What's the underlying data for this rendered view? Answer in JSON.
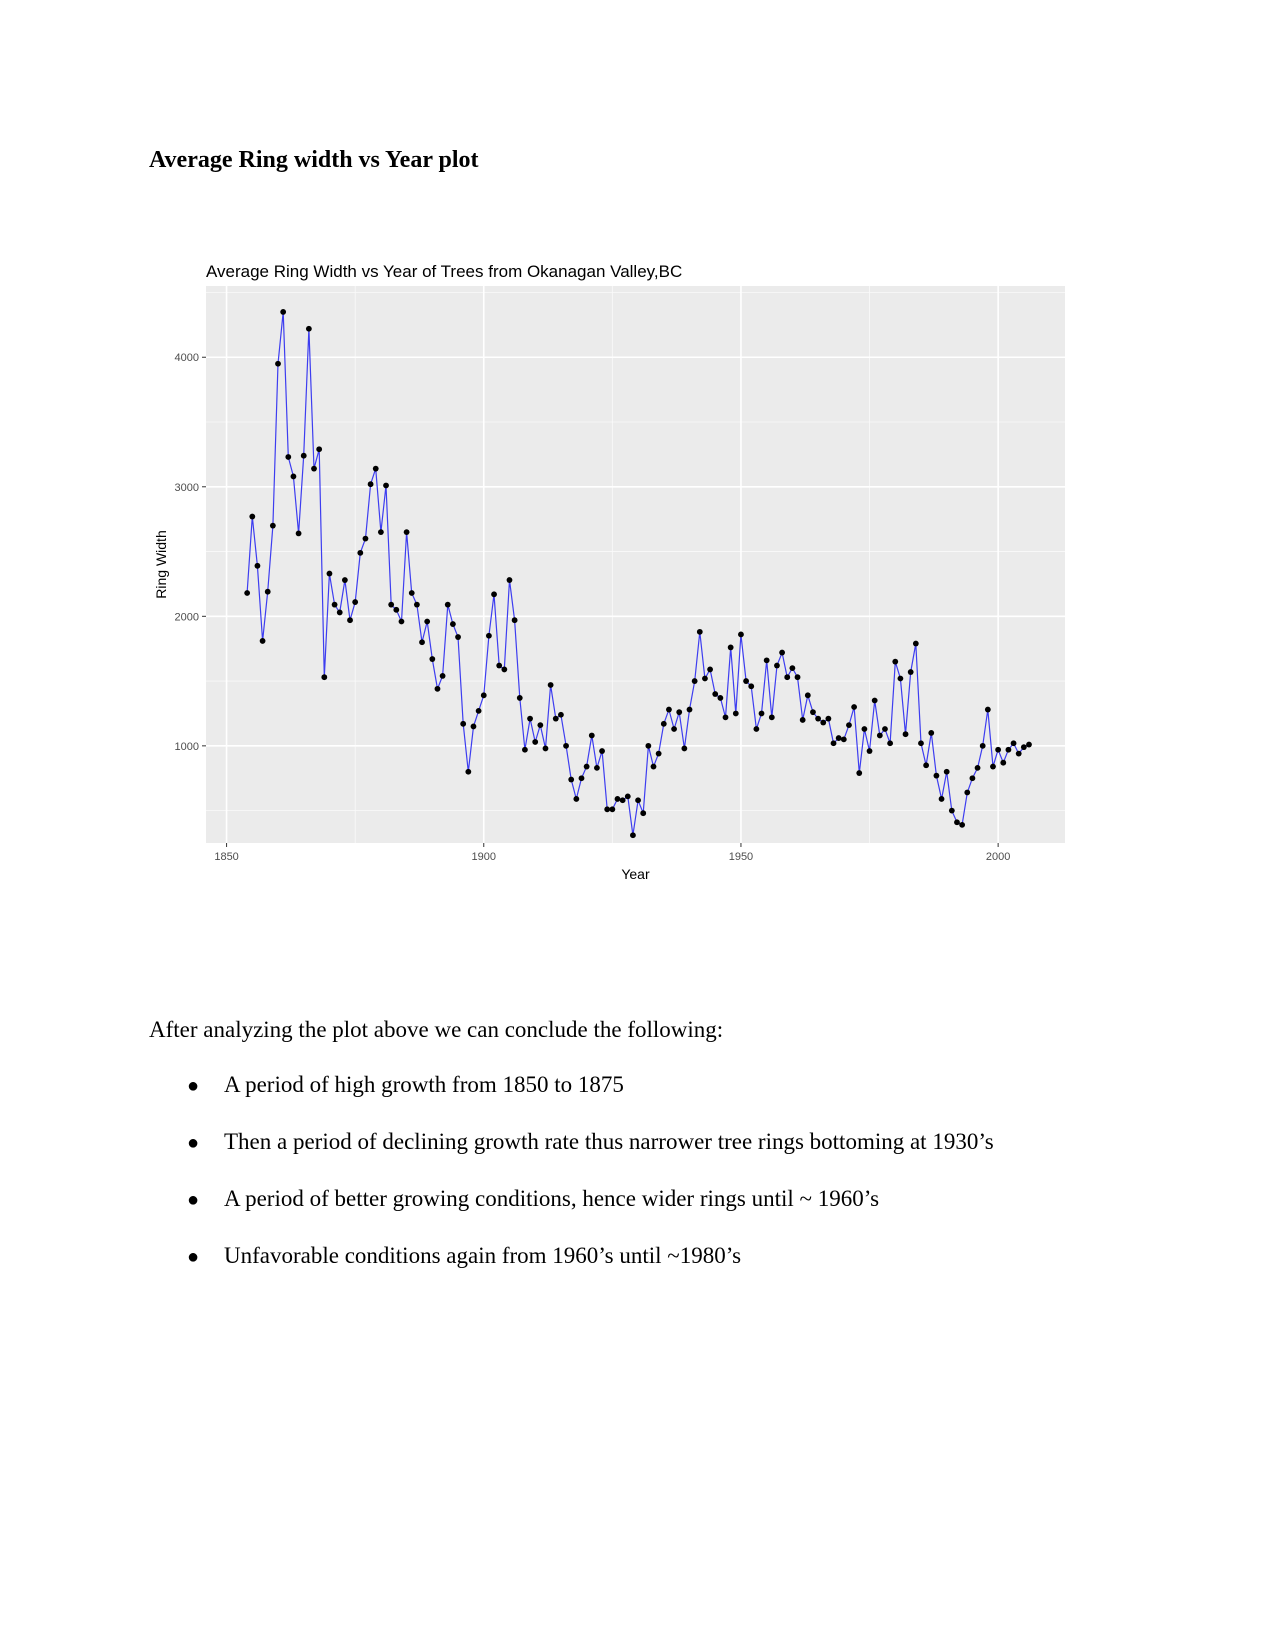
{
  "heading": "Average Ring width vs Year plot",
  "chart_data": {
    "type": "line",
    "title": "Average Ring Width vs Year of Trees from Okanagan Valley,BC",
    "xlabel": "Year",
    "ylabel": "Ring Width",
    "xlim": [
      1846,
      2013
    ],
    "ylim": [
      250,
      4550
    ],
    "x_ticks": [
      1850,
      1900,
      1950,
      2000
    ],
    "y_ticks": [
      1000,
      2000,
      3000,
      4000
    ],
    "grid": true,
    "line_color": "#3d3df0",
    "point_color": "#000000",
    "panel_color": "#ebebeb",
    "series": [
      {
        "x": [
          1854,
          1855,
          1856,
          1857,
          1858,
          1859,
          1860,
          1861,
          1862,
          1863,
          1864,
          1865,
          1866,
          1867,
          1868,
          1869,
          1870,
          1871,
          1872,
          1873,
          1874,
          1875,
          1876,
          1877,
          1878,
          1879,
          1880,
          1881,
          1882,
          1883,
          1884,
          1885,
          1886,
          1887,
          1888,
          1889,
          1890,
          1891,
          1892,
          1893,
          1894,
          1895,
          1896,
          1897,
          1898,
          1899,
          1900,
          1901,
          1902,
          1903,
          1904,
          1905,
          1906,
          1907,
          1908,
          1909,
          1910,
          1911,
          1912,
          1913,
          1914,
          1915,
          1916,
          1917,
          1918,
          1919,
          1920,
          1921,
          1922,
          1923,
          1924,
          1925,
          1926,
          1927,
          1928,
          1929,
          1930,
          1931,
          1932,
          1933,
          1934,
          1935,
          1936,
          1937,
          1938,
          1939,
          1940,
          1941,
          1942,
          1943,
          1944,
          1945,
          1946,
          1947,
          1948,
          1949,
          1950,
          1951,
          1952,
          1953,
          1954,
          1955,
          1956,
          1957,
          1958,
          1959,
          1960,
          1961,
          1962,
          1963,
          1964,
          1965,
          1966,
          1967,
          1968,
          1969,
          1970,
          1971,
          1972,
          1973,
          1974,
          1975,
          1976,
          1977,
          1978,
          1979,
          1980,
          1981,
          1982,
          1983,
          1984,
          1985,
          1986,
          1987,
          1988,
          1989,
          1990,
          1991,
          1992,
          1993,
          1994,
          1995,
          1996,
          1997,
          1998,
          1999,
          2000,
          2001,
          2002,
          2003,
          2004,
          2005,
          2006
        ],
        "values": [
          2180,
          2770,
          2390,
          1810,
          2190,
          2700,
          3950,
          4350,
          3230,
          3080,
          2640,
          3240,
          4220,
          3140,
          3290,
          1530,
          2330,
          2090,
          2030,
          2280,
          1970,
          2110,
          2490,
          2600,
          3020,
          3140,
          2650,
          3010,
          2090,
          2050,
          1960,
          2650,
          2180,
          2090,
          1800,
          1960,
          1670,
          1440,
          1540,
          2090,
          1940,
          1840,
          1170,
          800,
          1150,
          1270,
          1390,
          1850,
          2170,
          1620,
          1590,
          2280,
          1970,
          1370,
          970,
          1210,
          1030,
          1160,
          980,
          1470,
          1210,
          1240,
          1000,
          740,
          590,
          750,
          840,
          1080,
          830,
          960,
          510,
          510,
          590,
          580,
          610,
          310,
          580,
          480,
          1000,
          840,
          940,
          1170,
          1280,
          1130,
          1260,
          980,
          1280,
          1500,
          1880,
          1520,
          1590,
          1400,
          1370,
          1220,
          1760,
          1250,
          1860,
          1500,
          1460,
          1130,
          1250,
          1660,
          1220,
          1620,
          1720,
          1530,
          1600,
          1530,
          1200,
          1390,
          1260,
          1210,
          1180,
          1210,
          1020,
          1060,
          1050,
          1160,
          1300,
          790,
          1130,
          960,
          1350,
          1080,
          1130,
          1020,
          1650,
          1520,
          1090,
          1570,
          1790,
          1020,
          850,
          1100,
          770,
          590,
          800,
          500,
          410,
          390,
          640,
          750,
          830,
          1000,
          1280,
          840,
          970,
          870,
          970,
          1020,
          940,
          990,
          1010
        ]
      }
    ]
  },
  "conclusion": {
    "intro": "After analyzing the plot above we can conclude the following:",
    "bullet_symbol": "●",
    "items": [
      "A period of high growth from 1850 to 1875",
      "Then a period of declining growth rate thus narrower tree rings bottoming at 1930’s",
      "A period of better growing conditions, hence wider rings until ~ 1960’s",
      "Unfavorable conditions again from 1960’s until ~1980’s"
    ]
  }
}
